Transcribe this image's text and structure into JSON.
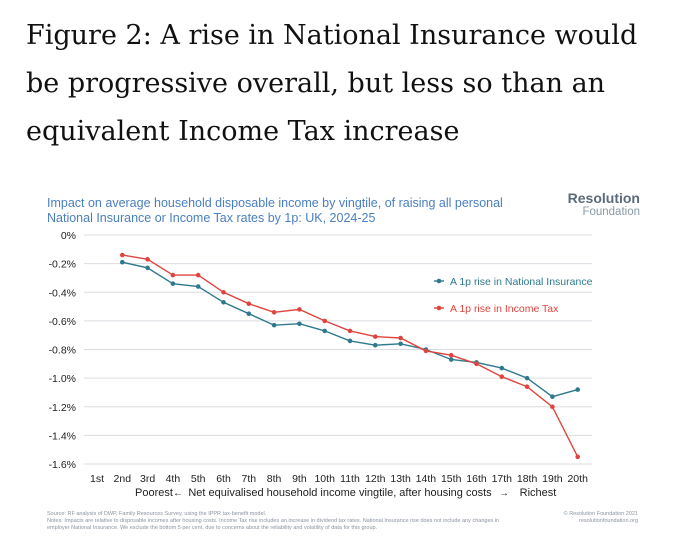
{
  "headline": "Figure 2: A rise in National Insurance would be progressive overall, but less so than an equivalent Income Tax increase",
  "brand": {
    "line1": "Resolution",
    "line2": "Foundation"
  },
  "footer": {
    "source": "Source: RF analysis of DWP, Family Resources Survey, using the IPPR tax-benefit model.",
    "notes": "Notes: Impacts are relative to disposable incomes after housing costs. Income Tax rise includes an increase in dividend tax rates. National Insurance rise does not include any changes in employer National Insurance.  We exclude the bottom 5 per cent, due to concerns about the reliability and volatility of data for this group.",
    "copyright": "© Resolution Foundation 2021",
    "website": "resolutionfoundation.org"
  },
  "chart_data": {
    "type": "line",
    "title": "Impact on average household disposable income by vingtile, of raising all personal National Insurance or Income Tax rates by 1p: UK, 2024-25",
    "xlabel": "Net equivalised household income vingtile, after housing costs",
    "x_left_label": "Poorest",
    "x_left_arrow": "←",
    "x_right_arrow": "→",
    "x_right_label": "Richest",
    "categories": [
      "1st",
      "2nd",
      "3rd",
      "4th",
      "5th",
      "6th",
      "7th",
      "8th",
      "9th",
      "10th",
      "11th",
      "12th",
      "13th",
      "14th",
      "15th",
      "16th",
      "17th",
      "18th",
      "19th",
      "20th"
    ],
    "yticks": [
      "0%",
      "-0.2%",
      "-0.4%",
      "-0.6%",
      "-0.8%",
      "-1.0%",
      "-1.2%",
      "-1.4%",
      "-1.6%"
    ],
    "ylim": [
      -1.6,
      0
    ],
    "grid": true,
    "series": [
      {
        "name": "A 1p rise in National Insurance",
        "color": "#2e7a8c",
        "values": [
          null,
          -0.19,
          -0.23,
          -0.34,
          -0.36,
          -0.47,
          -0.55,
          -0.63,
          -0.62,
          -0.67,
          -0.74,
          -0.77,
          -0.76,
          -0.8,
          -0.87,
          -0.89,
          -0.93,
          -1.0,
          -1.13,
          -1.08
        ]
      },
      {
        "name": "A 1p rise in Income Tax",
        "color": "#e0443e",
        "values": [
          null,
          -0.14,
          -0.17,
          -0.28,
          -0.28,
          -0.4,
          -0.48,
          -0.54,
          -0.52,
          -0.6,
          -0.67,
          -0.71,
          -0.72,
          -0.81,
          -0.84,
          -0.9,
          -0.99,
          -1.06,
          -1.2,
          -1.55
        ]
      }
    ]
  }
}
